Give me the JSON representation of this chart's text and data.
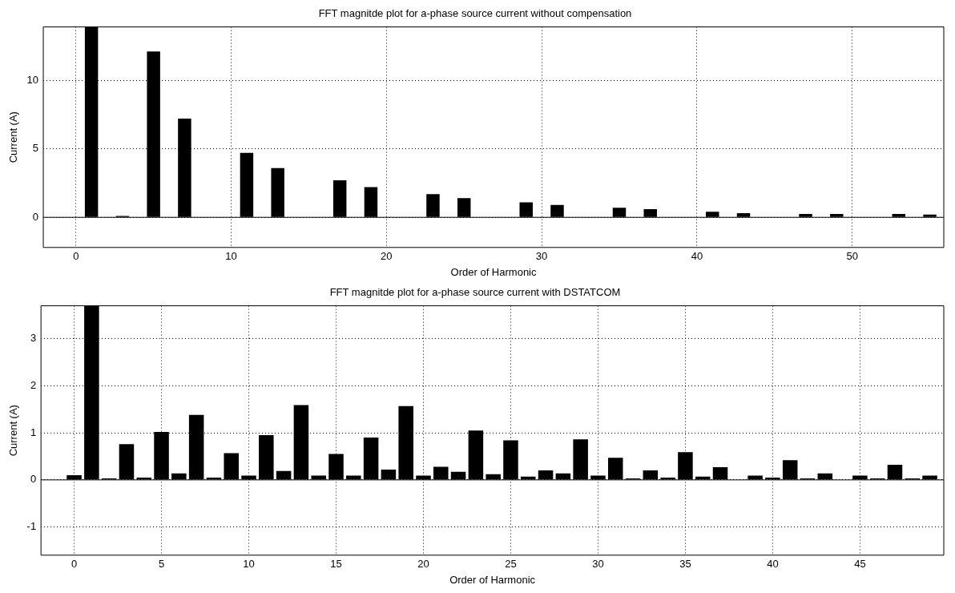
{
  "chart_data": [
    {
      "type": "bar",
      "title": "FFT magnitde plot for a-phase source current without compensation",
      "xlabel": "Order of Harmonic",
      "ylabel": "Current (A)",
      "x": [
        1,
        3,
        5,
        7,
        9,
        11,
        13,
        15,
        17,
        19,
        21,
        23,
        25,
        27,
        29,
        31,
        33,
        35,
        37,
        39,
        41,
        43,
        45,
        47,
        49,
        51,
        53,
        55
      ],
      "values": [
        13.9,
        0.1,
        12.1,
        7.2,
        0,
        4.7,
        3.6,
        0,
        2.7,
        2.2,
        0,
        1.7,
        1.4,
        0,
        1.1,
        0.9,
        0,
        0.7,
        0.6,
        0,
        0.4,
        0.3,
        0,
        0.25,
        0.25,
        0,
        0.25,
        0.2
      ],
      "color": "#000000",
      "xlim": [
        -2.1,
        55.9
      ],
      "xticks": [
        0,
        10,
        20,
        30,
        40,
        50
      ],
      "ylim": [
        -2.2,
        13.9
      ],
      "yticks": [
        0,
        5,
        10
      ],
      "grid": true
    },
    {
      "type": "bar",
      "title": "FFT magnitde plot for a-phase source current with DSTATCOM",
      "xlabel": "Order of Harmonic",
      "ylabel": "Current (A)",
      "x": [
        0,
        1,
        2,
        3,
        4,
        5,
        6,
        7,
        8,
        9,
        10,
        11,
        12,
        13,
        14,
        15,
        16,
        17,
        18,
        19,
        20,
        21,
        22,
        23,
        24,
        25,
        26,
        27,
        28,
        29,
        30,
        31,
        32,
        33,
        34,
        35,
        36,
        37,
        38,
        39,
        40,
        41,
        42,
        43,
        44,
        45,
        46,
        47,
        48,
        49
      ],
      "values": [
        0.1,
        3.7,
        0.03,
        0.76,
        0.05,
        1.02,
        0.14,
        1.38,
        0.05,
        0.57,
        0.09,
        0.95,
        0.19,
        1.59,
        0.09,
        0.55,
        0.09,
        0.9,
        0.22,
        1.57,
        0.09,
        0.28,
        0.17,
        1.05,
        0.12,
        0.84,
        0.07,
        0.2,
        0.14,
        0.86,
        0.09,
        0.47,
        0.03,
        0.2,
        0.05,
        0.59,
        0.07,
        0.27,
        0,
        0.09,
        0.05,
        0.42,
        0.03,
        0.14,
        0,
        0.09,
        0.03,
        0.32,
        0.03,
        0.09
      ],
      "color": "#000000",
      "xlim": [
        -1.9,
        49.8
      ],
      "xticks": [
        0,
        5,
        10,
        15,
        20,
        25,
        30,
        35,
        40,
        45
      ],
      "ylim": [
        -1.6,
        3.7
      ],
      "yticks": [
        -1,
        0,
        1,
        2,
        3
      ],
      "grid": true
    }
  ]
}
